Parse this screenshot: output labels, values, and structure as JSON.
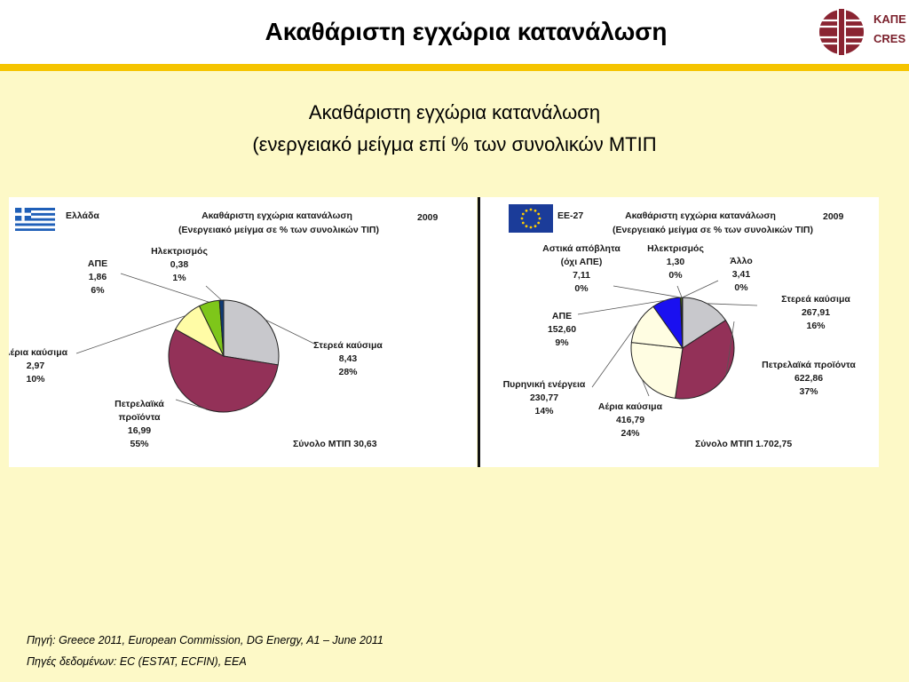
{
  "slide_title": "Ακαθάριστη εγχώρια κατανάλωση",
  "subtitle_line1": "Ακαθάριστη εγχώρια κατανάλωση",
  "subtitle_line2": "(ενεργειακό μείγμα επί % των συνολικών ΜΤΙΠ",
  "logo": {
    "line1": "ΚΑΠΕ",
    "line2": "CRES"
  },
  "source_line1": "Πηγή: Greece 2011, European Commission, DG Energy, A1 – June 2011",
  "source_line2": "Πηγές δεδομένων: EC (ESTAT, ECFIN), EEA",
  "colors": {
    "solid": "#c8c8cc",
    "oil": "#933158",
    "gas": "#fffdc6",
    "nuclear": "#fffde2",
    "res": "#1a10f0",
    "res_gr": "#7ec61a",
    "res_eu": "#7ec61a",
    "elec": "#0f3a75",
    "waste": "#7ec61a",
    "other": "#1a1a1a",
    "background": "#fdf9c7",
    "accent": "#f5c400"
  },
  "chart_data": [
    {
      "type": "pie",
      "region": "Ελλάδα",
      "title": "Ακαθάριστη εγχώρια κατανάλωση",
      "subtitle": "(Ενεργειακό μείγμα σε % των συνολικών ΤΙΠ)",
      "year": "2009",
      "total_label": "Σύνολο ΜΤΙΠ 30,63",
      "slices": [
        {
          "name": "Στερεά καύσιμα",
          "value": 8.43,
          "value_label": "8,43",
          "pct_label": "28%",
          "color": "#c8c8cc"
        },
        {
          "name": "Πετρελαϊκά προϊόντα",
          "value": 16.99,
          "value_label": "16,99",
          "pct_label": "55%",
          "color": "#933158"
        },
        {
          "name": "Αέρια καύσιμα",
          "value": 2.97,
          "value_label": "2,97",
          "pct_label": "10%",
          "color": "#fffca6"
        },
        {
          "name": "ΑΠΕ",
          "value": 1.86,
          "value_label": "1,86",
          "pct_label": "6%",
          "color": "#7ec61a"
        },
        {
          "name": "Ηλεκτρισμός",
          "value": 0.38,
          "value_label": "0,38",
          "pct_label": "1%",
          "color": "#0f3a75"
        }
      ]
    },
    {
      "type": "pie",
      "region": "ΕΕ-27",
      "title": "Ακαθάριστη εγχώρια κατανάλωση",
      "subtitle": "(Ενεργειακό μείγμα σε % των συνολικών ΤΙΠ)",
      "year": "2009",
      "total_label": "Σύνολο ΜΤΙΠ  1.702,75",
      "slices": [
        {
          "name": "Στερεά καύσιμα",
          "value": 267.91,
          "value_label": "267,91",
          "pct_label": "16%",
          "color": "#c8c8cc"
        },
        {
          "name": "Πετρελαϊκά προϊόντα",
          "value": 622.86,
          "value_label": "622,86",
          "pct_label": "37%",
          "color": "#933158"
        },
        {
          "name": "Αέρια καύσιμα",
          "value": 416.79,
          "value_label": "416,79",
          "pct_label": "24%",
          "color": "#fffde2"
        },
        {
          "name": "Πυρηνική ενέργεια",
          "value": 230.77,
          "value_label": "230,77",
          "pct_label": "14%",
          "color": "#fffde2"
        },
        {
          "name": "ΑΠΕ",
          "value": 152.6,
          "value_label": "152,60",
          "pct_label": "9%",
          "color": "#1a10f0"
        },
        {
          "name": "Αστικά απόβλητα (όχι ΑΠΕ)",
          "value": 7.11,
          "value_label": "7,11",
          "pct_label": "0%",
          "color": "#7ec61a"
        },
        {
          "name": "Ηλεκτρισμός",
          "value": 1.3,
          "value_label": "1,30",
          "pct_label": "0%",
          "color": "#0f3a75"
        },
        {
          "name": "Άλλο",
          "value": 3.41,
          "value_label": "3,41",
          "pct_label": "0%",
          "color": "#1a1a1a"
        }
      ]
    }
  ]
}
